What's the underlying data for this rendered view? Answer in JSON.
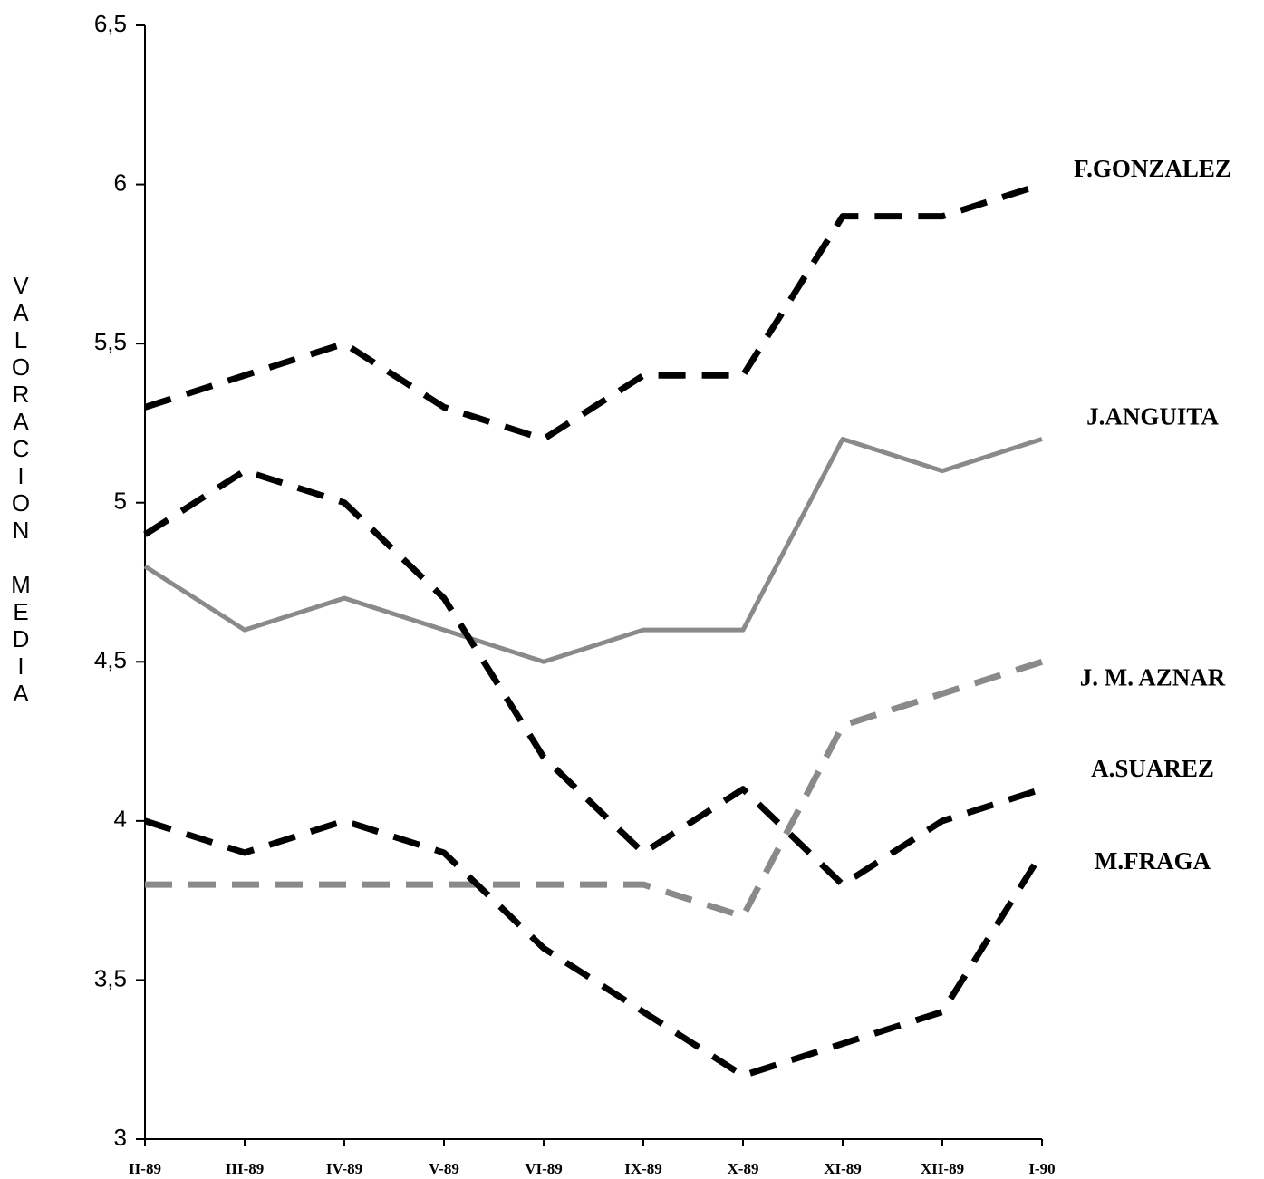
{
  "chart_data": {
    "type": "line",
    "y_label": "VALORACION MEDIA",
    "categories": [
      "II-89",
      "III-89",
      "IV-89",
      "V-89",
      "VI-89",
      "IX-89",
      "X-89",
      "XI-89",
      "XII-89",
      "I-90"
    ],
    "series": [
      {
        "name": "F.GONZALEZ",
        "color": "#000000",
        "dashed": true,
        "values": [
          5.3,
          5.4,
          5.5,
          5.3,
          5.2,
          5.4,
          5.4,
          5.9,
          5.9,
          6.0
        ]
      },
      {
        "name": "J.ANGUITA",
        "color": "#8a8a8a",
        "dashed": false,
        "values": [
          4.8,
          4.6,
          4.7,
          4.6,
          4.5,
          4.6,
          4.6,
          5.2,
          5.1,
          5.2
        ]
      },
      {
        "name": "J. M. AZNAR",
        "color": "#8a8a8a",
        "dashed": true,
        "values": [
          3.8,
          3.8,
          3.8,
          3.8,
          3.8,
          3.8,
          3.7,
          4.3,
          4.4,
          4.5
        ]
      },
      {
        "name": "A.SUAREZ",
        "color": "#000000",
        "dashed": true,
        "values": [
          4.9,
          5.1,
          5.0,
          4.7,
          4.2,
          3.9,
          4.1,
          3.8,
          4.0,
          4.1
        ]
      },
      {
        "name": "M.FRAGA",
        "color": "#000000",
        "dashed": true,
        "values": [
          4.0,
          3.9,
          4.0,
          3.9,
          3.6,
          3.4,
          3.2,
          3.3,
          3.4,
          3.9
        ]
      }
    ],
    "ylim": [
      3,
      6.5
    ],
    "yticks": [
      3,
      {
        "value": 3.5,
        "label": "3,5"
      },
      4,
      {
        "value": 4.5,
        "label": "4,5"
      },
      5,
      {
        "value": 5.5,
        "label": "5,5"
      },
      6,
      {
        "value": 6.5,
        "label": "6,5"
      }
    ],
    "grid": false
  }
}
